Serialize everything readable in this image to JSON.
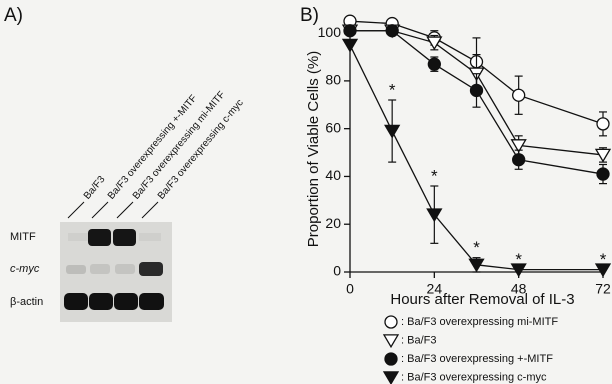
{
  "panel_a": {
    "label": "A)",
    "lanes": [
      "Ba/F3",
      "Ba/F3 overexpressing +-MITF",
      "Ba/F3 overexpressing mi-MITF",
      "Ba/F3 overexpressing c-myc"
    ],
    "rows": [
      "MITF",
      "c-myc",
      "β-actin"
    ]
  },
  "chart_data": {
    "type": "line",
    "panel_label": "B)",
    "x_label": "Hours after Removal of IL-3",
    "y_label": "Proportion of Viable Cells (%)",
    "x": [
      0,
      12,
      24,
      36,
      48,
      72
    ],
    "xlim": [
      0,
      72
    ],
    "xticks": [
      0,
      24,
      48,
      72
    ],
    "ylim": [
      0,
      108
    ],
    "yticks": [
      0,
      20,
      40,
      60,
      80,
      100
    ],
    "series": [
      {
        "name": ": Ba/F3 overexpressing mi-MITF",
        "marker": "circle-open",
        "color": "#111111",
        "values": [
          105,
          104,
          98,
          88,
          74,
          62
        ],
        "errors": [
          null,
          null,
          3,
          10,
          8,
          5
        ]
      },
      {
        "name": ": Ba/F3",
        "marker": "triangle-open",
        "color": "#111111",
        "values": [
          101,
          101,
          96,
          83,
          53,
          49
        ],
        "errors": [
          null,
          null,
          3,
          8,
          4,
          3
        ]
      },
      {
        "name": ": Ba/F3 overexpressing +-MITF",
        "marker": "circle-filled",
        "color": "#111111",
        "values": [
          101,
          101,
          87,
          76,
          47,
          41
        ],
        "errors": [
          null,
          null,
          3,
          7,
          4,
          4
        ]
      },
      {
        "name": ": Ba/F3 overexpressing c-myc",
        "marker": "triangle-filled",
        "color": "#111111",
        "values": [
          95,
          59,
          24,
          3,
          1,
          1
        ],
        "errors": [
          null,
          13,
          12,
          3,
          null,
          null
        ]
      }
    ],
    "annotations": [
      {
        "text": "*",
        "x": 12,
        "series": 3
      },
      {
        "text": "*",
        "x": 24,
        "series": 3
      },
      {
        "text": "*",
        "x": 36,
        "series": 3
      },
      {
        "text": "*",
        "x": 48,
        "series": 3
      },
      {
        "text": "*",
        "x": 72,
        "series": 3
      }
    ]
  }
}
